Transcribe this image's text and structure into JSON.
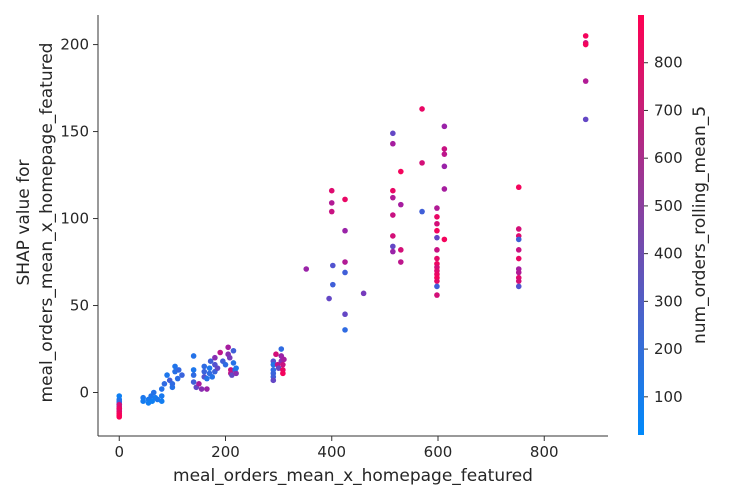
{
  "chart_data": {
    "type": "scatter",
    "xlabel": "meal_orders_mean_x_homepage_featured",
    "ylabel_lines": [
      "SHAP value for",
      "meal_orders_mean_x_homepage_featured"
    ],
    "xlim": [
      -40,
      920
    ],
    "ylim": [
      -25,
      217
    ],
    "xticks": [
      0,
      200,
      400,
      600,
      800
    ],
    "yticks": [
      0,
      50,
      100,
      150,
      200
    ],
    "grid": false,
    "colorbar": {
      "label": "num_orders_rolling_mean_5",
      "range": [
        20,
        900
      ],
      "ticks": [
        100,
        200,
        300,
        400,
        500,
        600,
        700,
        800
      ],
      "colors": [
        "#008afb",
        "#ff0052"
      ]
    },
    "points": [
      {
        "x": 0,
        "y": -2,
        "c": 60
      },
      {
        "x": 0,
        "y": -4,
        "c": 80
      },
      {
        "x": 0,
        "y": -5,
        "c": 120
      },
      {
        "x": 0,
        "y": -6,
        "c": 180
      },
      {
        "x": 0,
        "y": -7,
        "c": 250
      },
      {
        "x": 0,
        "y": -8,
        "c": 350
      },
      {
        "x": 0,
        "y": -9,
        "c": 500
      },
      {
        "x": 0,
        "y": -10,
        "c": 650
      },
      {
        "x": 0,
        "y": -11,
        "c": 750
      },
      {
        "x": 0,
        "y": -12,
        "c": 820
      },
      {
        "x": 0,
        "y": -13,
        "c": 860
      },
      {
        "x": 0,
        "y": -14,
        "c": 880
      },
      {
        "x": 0,
        "y": -7,
        "c": 700
      },
      {
        "x": 0,
        "y": -9,
        "c": 800
      },
      {
        "x": 45,
        "y": -3,
        "c": 100
      },
      {
        "x": 45,
        "y": -5,
        "c": 80
      },
      {
        "x": 55,
        "y": -4,
        "c": 90
      },
      {
        "x": 55,
        "y": -6,
        "c": 70
      },
      {
        "x": 60,
        "y": -2,
        "c": 110
      },
      {
        "x": 62,
        "y": -5,
        "c": 60
      },
      {
        "x": 65,
        "y": 0,
        "c": 120
      },
      {
        "x": 68,
        "y": -3,
        "c": 80
      },
      {
        "x": 72,
        "y": -4,
        "c": 100
      },
      {
        "x": 80,
        "y": -2,
        "c": 90
      },
      {
        "x": 80,
        "y": -5,
        "c": 70
      },
      {
        "x": 80,
        "y": 2,
        "c": 120
      },
      {
        "x": 85,
        "y": 5,
        "c": 150
      },
      {
        "x": 90,
        "y": 10,
        "c": 100
      },
      {
        "x": 95,
        "y": 7,
        "c": 200
      },
      {
        "x": 100,
        "y": 3,
        "c": 120
      },
      {
        "x": 100,
        "y": 5,
        "c": 150
      },
      {
        "x": 105,
        "y": 12,
        "c": 130
      },
      {
        "x": 105,
        "y": 15,
        "c": 110
      },
      {
        "x": 110,
        "y": 8,
        "c": 140
      },
      {
        "x": 112,
        "y": 13,
        "c": 160
      },
      {
        "x": 118,
        "y": 10,
        "c": 180
      },
      {
        "x": 140,
        "y": 21,
        "c": 120
      },
      {
        "x": 140,
        "y": 13,
        "c": 100
      },
      {
        "x": 140,
        "y": 10,
        "c": 150
      },
      {
        "x": 140,
        "y": 6,
        "c": 200
      },
      {
        "x": 145,
        "y": 3,
        "c": 300
      },
      {
        "x": 150,
        "y": 5,
        "c": 500
      },
      {
        "x": 155,
        "y": 2,
        "c": 400
      },
      {
        "x": 160,
        "y": 9,
        "c": 250
      },
      {
        "x": 160,
        "y": 12,
        "c": 180
      },
      {
        "x": 160,
        "y": 15,
        "c": 150
      },
      {
        "x": 165,
        "y": 8,
        "c": 120
      },
      {
        "x": 165,
        "y": 2,
        "c": 450
      },
      {
        "x": 170,
        "y": 14,
        "c": 100
      },
      {
        "x": 170,
        "y": 11,
        "c": 150
      },
      {
        "x": 172,
        "y": 18,
        "c": 200
      },
      {
        "x": 175,
        "y": 9,
        "c": 120
      },
      {
        "x": 180,
        "y": 20,
        "c": 400
      },
      {
        "x": 180,
        "y": 16,
        "c": 250
      },
      {
        "x": 180,
        "y": 12,
        "c": 180
      },
      {
        "x": 185,
        "y": 14,
        "c": 300
      },
      {
        "x": 190,
        "y": 23,
        "c": 600
      },
      {
        "x": 195,
        "y": 18,
        "c": 200
      },
      {
        "x": 200,
        "y": 16,
        "c": 150
      },
      {
        "x": 205,
        "y": 26,
        "c": 500
      },
      {
        "x": 205,
        "y": 22,
        "c": 400
      },
      {
        "x": 208,
        "y": 20,
        "c": 350
      },
      {
        "x": 210,
        "y": 13,
        "c": 650
      },
      {
        "x": 210,
        "y": 11,
        "c": 600
      },
      {
        "x": 212,
        "y": 10,
        "c": 300
      },
      {
        "x": 215,
        "y": 24,
        "c": 200
      },
      {
        "x": 215,
        "y": 17,
        "c": 120
      },
      {
        "x": 218,
        "y": 13,
        "c": 180
      },
      {
        "x": 220,
        "y": 11,
        "c": 400
      },
      {
        "x": 220,
        "y": 14,
        "c": 100
      },
      {
        "x": 290,
        "y": 18,
        "c": 250
      },
      {
        "x": 290,
        "y": 16,
        "c": 120
      },
      {
        "x": 290,
        "y": 13,
        "c": 150
      },
      {
        "x": 290,
        "y": 11,
        "c": 180
      },
      {
        "x": 290,
        "y": 9,
        "c": 200
      },
      {
        "x": 290,
        "y": 7,
        "c": 300
      },
      {
        "x": 295,
        "y": 22,
        "c": 700
      },
      {
        "x": 298,
        "y": 16,
        "c": 600
      },
      {
        "x": 300,
        "y": 14,
        "c": 300
      },
      {
        "x": 305,
        "y": 25,
        "c": 150
      },
      {
        "x": 305,
        "y": 21,
        "c": 450
      },
      {
        "x": 305,
        "y": 18,
        "c": 400
      },
      {
        "x": 308,
        "y": 16,
        "c": 650
      },
      {
        "x": 308,
        "y": 13,
        "c": 800
      },
      {
        "x": 308,
        "y": 11,
        "c": 850
      },
      {
        "x": 310,
        "y": 19,
        "c": 500
      },
      {
        "x": 352,
        "y": 71,
        "c": 450
      },
      {
        "x": 395,
        "y": 54,
        "c": 300
      },
      {
        "x": 400,
        "y": 116,
        "c": 750
      },
      {
        "x": 400,
        "y": 109,
        "c": 550
      },
      {
        "x": 400,
        "y": 104,
        "c": 650
      },
      {
        "x": 402,
        "y": 73,
        "c": 250
      },
      {
        "x": 402,
        "y": 62,
        "c": 200
      },
      {
        "x": 425,
        "y": 111,
        "c": 800
      },
      {
        "x": 425,
        "y": 93,
        "c": 450
      },
      {
        "x": 425,
        "y": 75,
        "c": 550
      },
      {
        "x": 425,
        "y": 69,
        "c": 200
      },
      {
        "x": 425,
        "y": 45,
        "c": 300
      },
      {
        "x": 425,
        "y": 36,
        "c": 150
      },
      {
        "x": 460,
        "y": 57,
        "c": 350
      },
      {
        "x": 515,
        "y": 149,
        "c": 300
      },
      {
        "x": 515,
        "y": 143,
        "c": 500
      },
      {
        "x": 515,
        "y": 116,
        "c": 800
      },
      {
        "x": 515,
        "y": 112,
        "c": 550
      },
      {
        "x": 515,
        "y": 102,
        "c": 650
      },
      {
        "x": 515,
        "y": 90,
        "c": 700
      },
      {
        "x": 515,
        "y": 84,
        "c": 300
      },
      {
        "x": 515,
        "y": 81,
        "c": 450
      },
      {
        "x": 530,
        "y": 127,
        "c": 850
      },
      {
        "x": 530,
        "y": 108,
        "c": 500
      },
      {
        "x": 530,
        "y": 82,
        "c": 700
      },
      {
        "x": 530,
        "y": 75,
        "c": 600
      },
      {
        "x": 570,
        "y": 163,
        "c": 800
      },
      {
        "x": 570,
        "y": 132,
        "c": 700
      },
      {
        "x": 570,
        "y": 104,
        "c": 200
      },
      {
        "x": 598,
        "y": 106,
        "c": 550
      },
      {
        "x": 598,
        "y": 101,
        "c": 800
      },
      {
        "x": 598,
        "y": 97,
        "c": 700
      },
      {
        "x": 598,
        "y": 93,
        "c": 850
      },
      {
        "x": 598,
        "y": 89,
        "c": 300
      },
      {
        "x": 598,
        "y": 82,
        "c": 650
      },
      {
        "x": 598,
        "y": 77,
        "c": 780
      },
      {
        "x": 598,
        "y": 74,
        "c": 820
      },
      {
        "x": 598,
        "y": 72,
        "c": 700
      },
      {
        "x": 598,
        "y": 70,
        "c": 750
      },
      {
        "x": 598,
        "y": 68,
        "c": 800
      },
      {
        "x": 598,
        "y": 66,
        "c": 850
      },
      {
        "x": 598,
        "y": 64,
        "c": 780
      },
      {
        "x": 598,
        "y": 61,
        "c": 200
      },
      {
        "x": 598,
        "y": 56,
        "c": 700
      },
      {
        "x": 612,
        "y": 153,
        "c": 450
      },
      {
        "x": 612,
        "y": 140,
        "c": 650
      },
      {
        "x": 612,
        "y": 137,
        "c": 600
      },
      {
        "x": 612,
        "y": 130,
        "c": 450
      },
      {
        "x": 612,
        "y": 117,
        "c": 500
      },
      {
        "x": 612,
        "y": 88,
        "c": 850
      },
      {
        "x": 752,
        "y": 118,
        "c": 850
      },
      {
        "x": 752,
        "y": 94,
        "c": 700
      },
      {
        "x": 752,
        "y": 90,
        "c": 750
      },
      {
        "x": 752,
        "y": 88,
        "c": 200
      },
      {
        "x": 752,
        "y": 82,
        "c": 650
      },
      {
        "x": 752,
        "y": 77,
        "c": 800
      },
      {
        "x": 752,
        "y": 71,
        "c": 500
      },
      {
        "x": 752,
        "y": 69,
        "c": 550
      },
      {
        "x": 752,
        "y": 66,
        "c": 750
      },
      {
        "x": 752,
        "y": 64,
        "c": 700
      },
      {
        "x": 752,
        "y": 61,
        "c": 250
      },
      {
        "x": 878,
        "y": 205,
        "c": 850
      },
      {
        "x": 878,
        "y": 201,
        "c": 700
      },
      {
        "x": 878,
        "y": 200,
        "c": 850
      },
      {
        "x": 878,
        "y": 179,
        "c": 550
      },
      {
        "x": 878,
        "y": 157,
        "c": 300
      }
    ]
  }
}
